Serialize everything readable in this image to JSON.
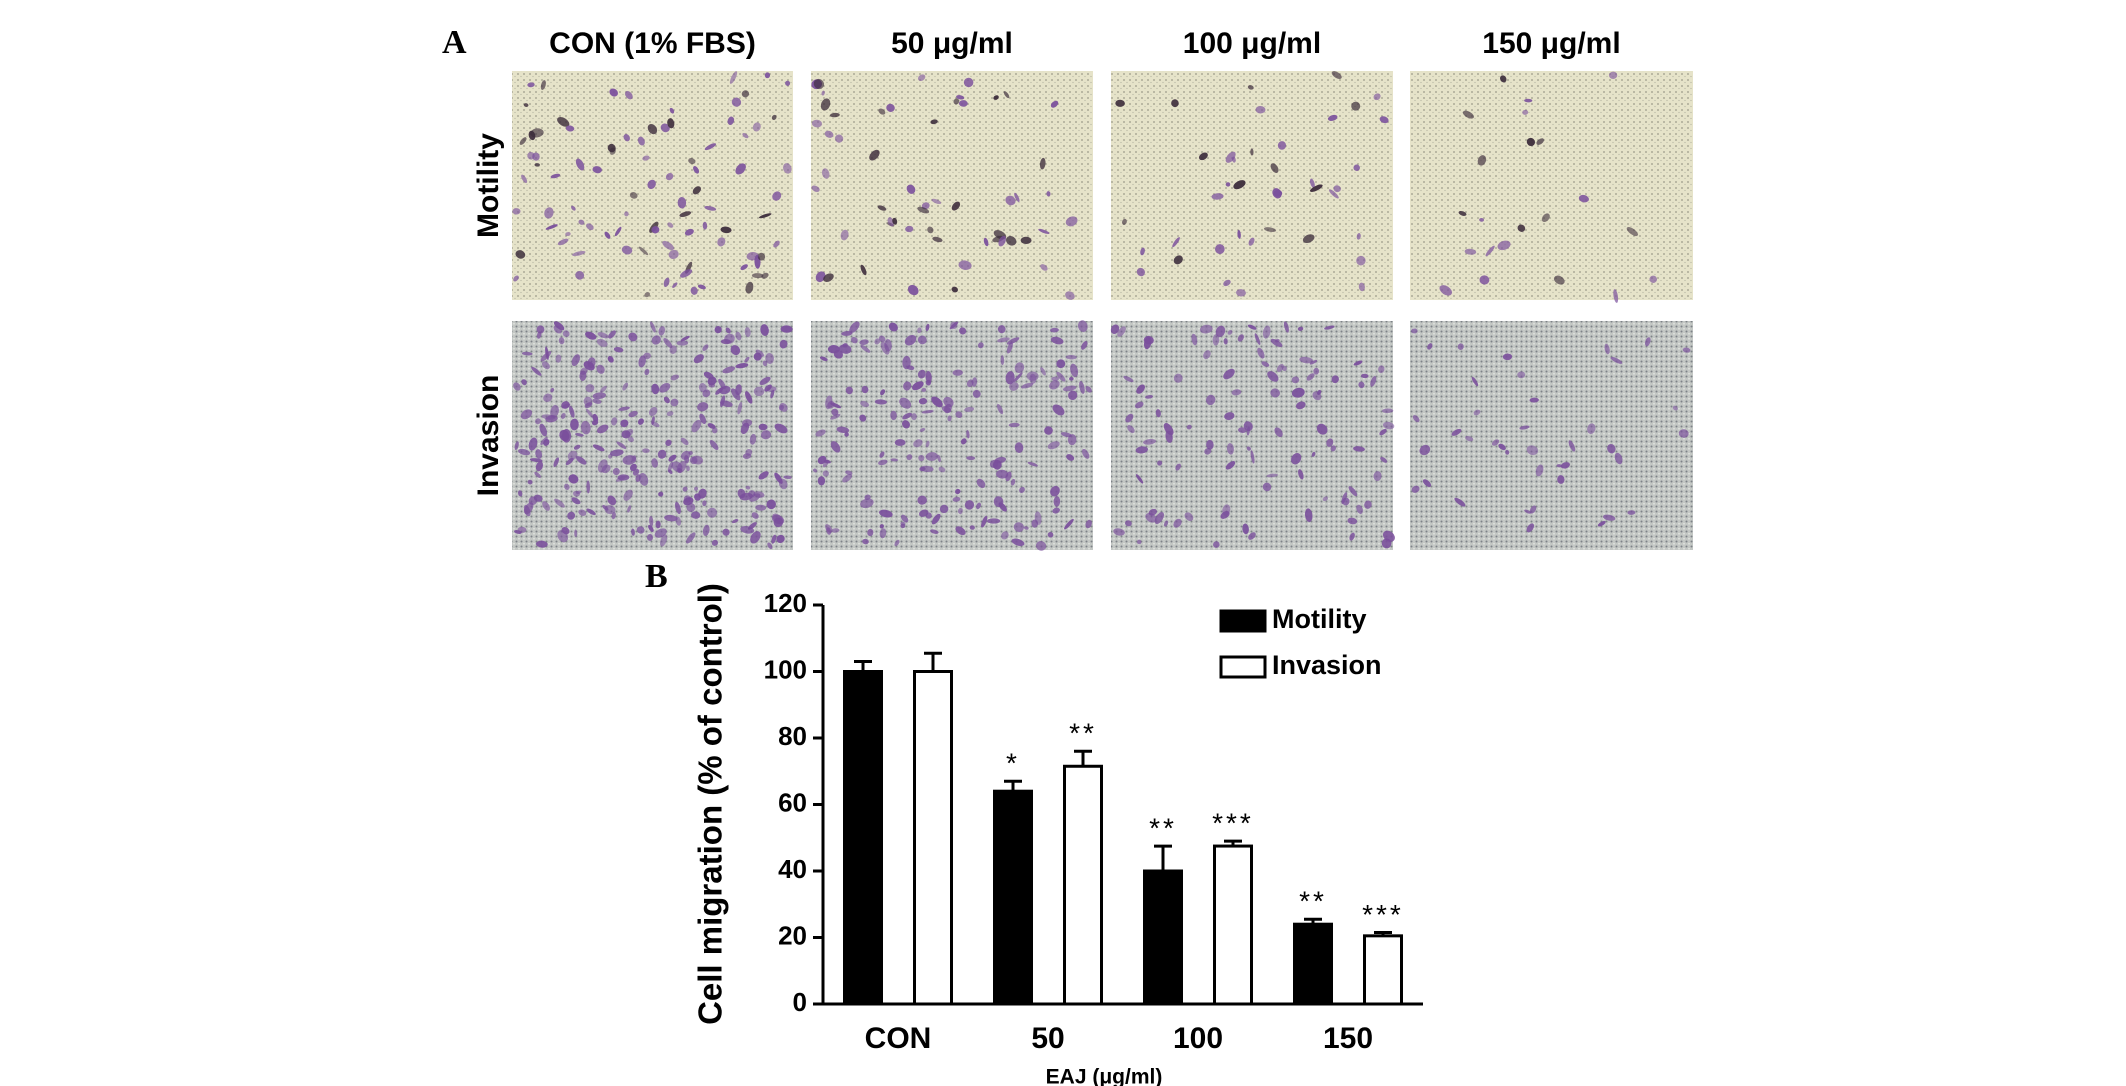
{
  "panel_a": {
    "label": "A",
    "columns": [
      "CON (1% FBS)",
      "50 μg/ml",
      "100 μg/ml",
      "150 μg/ml"
    ],
    "rows": [
      "Motility",
      "Invasion"
    ]
  },
  "chart_data": {
    "type": "bar",
    "panel_label": "B",
    "x_label": "EAJ (μg/ml)",
    "y_label": "Cell migration (% of control)",
    "categories": [
      "CON",
      "50",
      "100",
      "150"
    ],
    "series": [
      {
        "name": "Motility",
        "color": "#000000",
        "values": [
          100,
          64,
          40,
          24
        ],
        "errors": [
          3,
          3,
          7.5,
          1.5
        ],
        "annotations": [
          null,
          "*",
          "**",
          "**"
        ]
      },
      {
        "name": "Invasion",
        "color": "#ffffff",
        "values": [
          100,
          71.5,
          47.5,
          20.5
        ],
        "errors": [
          5.5,
          4.5,
          1.5,
          1
        ],
        "annotations": [
          null,
          "**",
          "***",
          "***"
        ]
      }
    ],
    "ylim": [
      0,
      120
    ],
    "yticks": [
      0,
      20,
      40,
      60,
      80,
      100,
      120
    ],
    "grid": false,
    "legend": "top-right"
  }
}
